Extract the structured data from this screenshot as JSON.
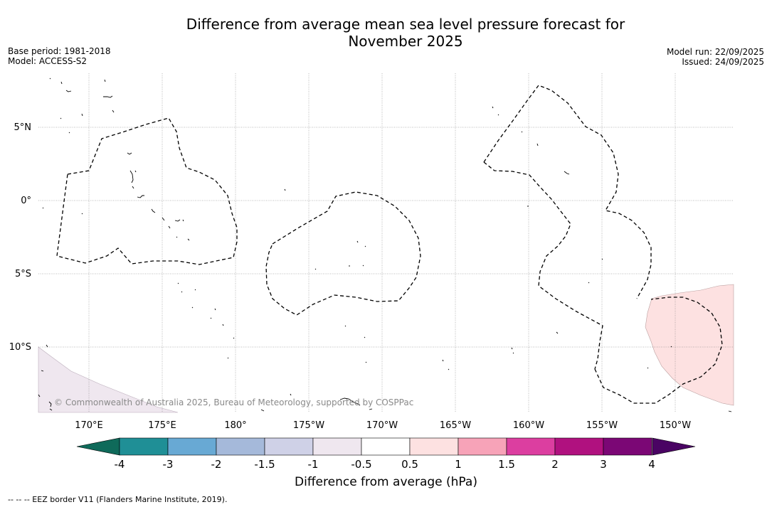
{
  "title_line1": "Difference from average mean sea level pressure forecast for",
  "title_line2": "November 2025",
  "meta_left": {
    "base_period": "Base period: 1981-2018",
    "model": "Model: ACCESS-S2"
  },
  "meta_right": {
    "model_run": "Model run: 22/09/2025",
    "issued": "Issued: 24/09/2025"
  },
  "copyright": "© Commonwealth of Australia 2025, Bureau of Meteorology, supported by COSPPac",
  "lat_labels": [
    "5°N",
    "0°",
    "5°S",
    "10°S"
  ],
  "lon_labels": [
    "170°E",
    "175°E",
    "180°",
    "175°W",
    "170°W",
    "165°W",
    "160°W",
    "155°W",
    "150°W"
  ],
  "colorbar": {
    "title": "Difference from average (hPa)",
    "ticks": [
      "-4",
      "-3",
      "-2",
      "-1.5",
      "-1",
      "-0.5",
      "0.5",
      "1",
      "1.5",
      "2",
      "3",
      "4"
    ],
    "bins": [
      {
        "range": "-4 to -3",
        "color": "#1f8f96"
      },
      {
        "range": "-3 to -2",
        "color": "#68a9d4"
      },
      {
        "range": "-2 to -1.5",
        "color": "#a5b9da"
      },
      {
        "range": "-1.5 to -1",
        "color": "#cfd1e7"
      },
      {
        "range": "-1 to -0.5",
        "color": "#efe7ef"
      },
      {
        "range": "-0.5 to 0.5",
        "color": "#ffffff"
      },
      {
        "range": "0.5 to 1",
        "color": "#fde1e1"
      },
      {
        "range": "1 to 1.5",
        "color": "#f7a3b8"
      },
      {
        "range": "1.5 to 2",
        "color": "#dc3ea0"
      },
      {
        "range": "2 to 3",
        "color": "#b0117f"
      },
      {
        "range": "3 to 4",
        "color": "#7b0775"
      }
    ],
    "extend_low_color": "#0f6a5a",
    "extend_high_color": "#4a0463"
  },
  "footer": "--  --  -- EEZ border V11 (Flanders Marine Institute, 2019)."
}
